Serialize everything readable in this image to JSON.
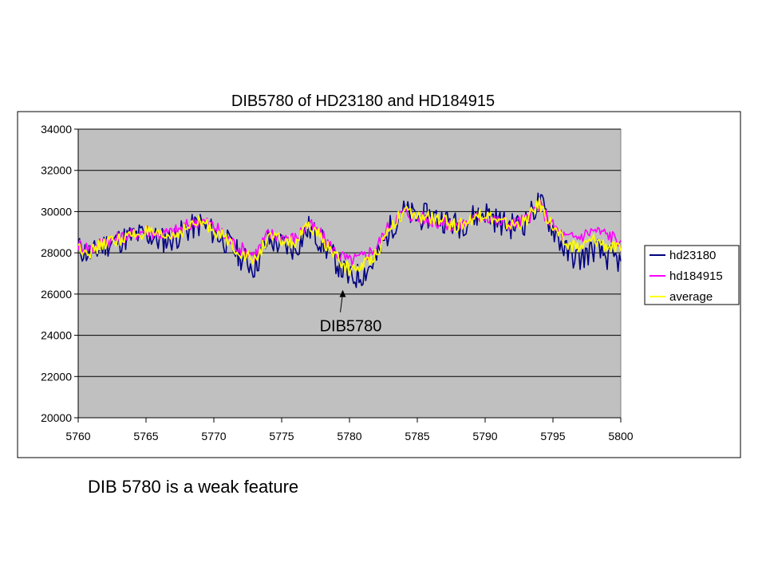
{
  "caption": "DIB 5780 is a weak feature",
  "chart_data": {
    "type": "line",
    "title": "DIB5780 of HD23180 and HD184915",
    "xlabel": "",
    "ylabel": "",
    "xlim": [
      5760,
      5800
    ],
    "ylim": [
      20000,
      34000
    ],
    "x_ticks": [
      "5760",
      "5765",
      "5770",
      "5775",
      "5780",
      "5785",
      "5790",
      "5795",
      "5800"
    ],
    "y_ticks": [
      "20000",
      "22000",
      "24000",
      "26000",
      "28000",
      "30000",
      "32000",
      "34000"
    ],
    "grid": "horizontal",
    "plot_background": "#c0c0c0",
    "legend_position": "right",
    "annotation": {
      "text": "DIB5780",
      "x": 5779.5,
      "y": 26200
    },
    "series": [
      {
        "name": "hd23180",
        "color": "#000080",
        "x": [
          5760,
          5761,
          5762,
          5763,
          5764,
          5765,
          5766,
          5767,
          5768,
          5769,
          5770,
          5771,
          5772,
          5773,
          5774,
          5775,
          5776,
          5777,
          5778,
          5779,
          5780,
          5781,
          5782,
          5783,
          5784,
          5785,
          5786,
          5787,
          5788,
          5789,
          5790,
          5791,
          5792,
          5793,
          5794,
          5795,
          5796,
          5797,
          5798,
          5799,
          5800
        ],
        "values": [
          28200,
          27900,
          28400,
          28600,
          28800,
          28900,
          28600,
          28700,
          29100,
          29400,
          29000,
          28500,
          27800,
          27300,
          28600,
          28400,
          28200,
          29200,
          28500,
          27600,
          26700,
          27000,
          27700,
          29200,
          30000,
          29700,
          29800,
          29600,
          29300,
          29700,
          30000,
          29500,
          29300,
          29500,
          30500,
          29200,
          28000,
          27700,
          28200,
          27800,
          27600
        ]
      },
      {
        "name": "hd184915",
        "color": "#ff00ff",
        "x": [
          5760,
          5761,
          5762,
          5763,
          5764,
          5765,
          5766,
          5767,
          5768,
          5769,
          5770,
          5771,
          5772,
          5773,
          5774,
          5775,
          5776,
          5777,
          5778,
          5779,
          5780,
          5781,
          5782,
          5783,
          5784,
          5785,
          5786,
          5787,
          5788,
          5789,
          5790,
          5791,
          5792,
          5793,
          5794,
          5795,
          5796,
          5797,
          5798,
          5799,
          5800
        ],
        "values": [
          28400,
          28200,
          28600,
          28700,
          28900,
          29100,
          28900,
          29000,
          29300,
          29600,
          29300,
          28700,
          28200,
          27900,
          28900,
          28800,
          28700,
          29400,
          28800,
          28000,
          27600,
          27800,
          28300,
          29400,
          30000,
          29700,
          29600,
          29400,
          29300,
          29600,
          29800,
          29500,
          29400,
          29600,
          30300,
          29300,
          28700,
          28800,
          29100,
          28900,
          28600
        ]
      },
      {
        "name": "average",
        "color": "#ffff00",
        "x": [
          5760,
          5761,
          5762,
          5763,
          5764,
          5765,
          5766,
          5767,
          5768,
          5769,
          5770,
          5771,
          5772,
          5773,
          5774,
          5775,
          5776,
          5777,
          5778,
          5779,
          5780,
          5781,
          5782,
          5783,
          5784,
          5785,
          5786,
          5787,
          5788,
          5789,
          5790,
          5791,
          5792,
          5793,
          5794,
          5795,
          5796,
          5797,
          5798,
          5799,
          5800
        ],
        "values": [
          28300,
          28050,
          28500,
          28650,
          28850,
          29000,
          28750,
          28850,
          29200,
          29500,
          29150,
          28600,
          28000,
          27600,
          28750,
          28600,
          28450,
          29300,
          28650,
          27800,
          27150,
          27400,
          28000,
          29300,
          30000,
          29700,
          29700,
          29500,
          29300,
          29650,
          29900,
          29500,
          29350,
          29550,
          30400,
          29250,
          28350,
          28250,
          28650,
          28350,
          28100
        ]
      }
    ]
  }
}
